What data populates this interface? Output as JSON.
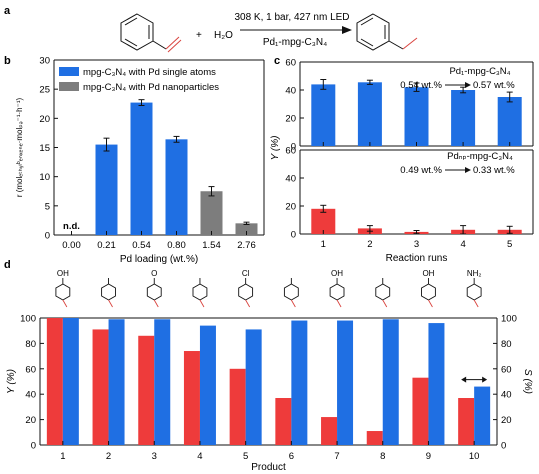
{
  "colors": {
    "blue": "#1f6fe3",
    "red": "#ee3b3b",
    "gray": "#7d7d7d",
    "axis": "#111111",
    "sub_red": "#d9443f"
  },
  "icons": {
    "arrow": "right-arrow-icon",
    "conversion_arrow": "long-right-arrow-icon",
    "two_way_arrow": "left-right-arrow-icon"
  },
  "panel_a": {
    "label": "a",
    "plus": "+",
    "water": "H₂O",
    "conditions_top": "308 K, 1 bar, 427 nm LED",
    "conditions_bottom": "Pd₁-mpg-C₃N₄"
  },
  "panel_b": {
    "label": "b",
    "legend": [
      "mpg-C₃N₄ with Pd single atoms",
      "mpg-C₃N₄ with Pd nanoparticles"
    ]
  },
  "panel_c": {
    "label": "c",
    "top_catalyst": "Pd₁-mpg-C₃N₄",
    "top_loading_from": "0.54 wt.%",
    "top_loading_to": "0.57 wt.%",
    "bottom_catalyst": "Pdₙₚ-mpg-C₃N₄",
    "bottom_loading_from": "0.49 wt.%",
    "bottom_loading_to": "0.33 wt.%"
  },
  "panel_d": {
    "label": "d",
    "structure_labels": [
      "OH",
      "",
      "O",
      "",
      "Cl",
      "",
      "OH",
      "",
      "OH",
      "NH₂"
    ]
  },
  "chart_data": [
    {
      "id": "b",
      "type": "bar",
      "xlabel": "Pd loading (wt.%)",
      "ylabel": "r (molₑₜₕᵧₗᵇₑₙₓₑₙₑ·molₚₔ⁻¹·h⁻¹)",
      "ylim": [
        0,
        30
      ],
      "yticks": [
        0,
        5,
        10,
        15,
        20,
        25,
        30
      ],
      "categories": [
        "0.00",
        "0.21",
        "0.54",
        "0.80",
        "1.54",
        "2.76"
      ],
      "values": [
        0,
        15.5,
        22.7,
        16.4,
        7.5,
        2.0
      ],
      "errors": [
        0,
        1.1,
        0.5,
        0.5,
        0.8,
        0.2
      ],
      "bar_colors": [
        "blue",
        "blue",
        "blue",
        "blue",
        "gray",
        "gray"
      ],
      "annotations": [
        {
          "category": "0.00",
          "text": "n.d."
        }
      ]
    },
    {
      "id": "c-top",
      "type": "bar",
      "ylabel": "Y (%)",
      "ylim": [
        0,
        60
      ],
      "yticks": [
        0,
        20,
        40,
        60
      ],
      "categories": [
        "1",
        "2",
        "3",
        "4",
        "5"
      ],
      "values": [
        44,
        45.5,
        42,
        40,
        35
      ],
      "errors": [
        3.5,
        1.5,
        3.0,
        2.0,
        3.5
      ],
      "color": "blue"
    },
    {
      "id": "c-bottom",
      "type": "bar",
      "xlabel": "Reaction runs",
      "ylim": [
        0,
        60
      ],
      "yticks": [
        0,
        20,
        40,
        60
      ],
      "categories": [
        "1",
        "2",
        "3",
        "4",
        "5"
      ],
      "values": [
        18,
        4,
        1.5,
        3,
        3
      ],
      "errors": [
        2.5,
        2.0,
        1.0,
        3.0,
        2.5
      ],
      "color": "red"
    },
    {
      "id": "d",
      "type": "bar",
      "xlabel": "Product",
      "ylabel_left": "Y (%)",
      "ylabel_right": "S (%)",
      "ylim": [
        0,
        100
      ],
      "yticks": [
        0,
        20,
        40,
        60,
        80,
        100
      ],
      "categories": [
        "1",
        "2",
        "3",
        "4",
        "5",
        "6",
        "7",
        "8",
        "9",
        "10"
      ],
      "series": [
        {
          "values": [
            100,
            91,
            86,
            74,
            60,
            37,
            22,
            11,
            53,
            37
          ],
          "color": "red"
        },
        {
          "values": [
            100,
            99,
            99,
            94,
            91,
            98,
            98,
            99,
            96,
            46
          ],
          "color": "blue"
        }
      ]
    }
  ]
}
